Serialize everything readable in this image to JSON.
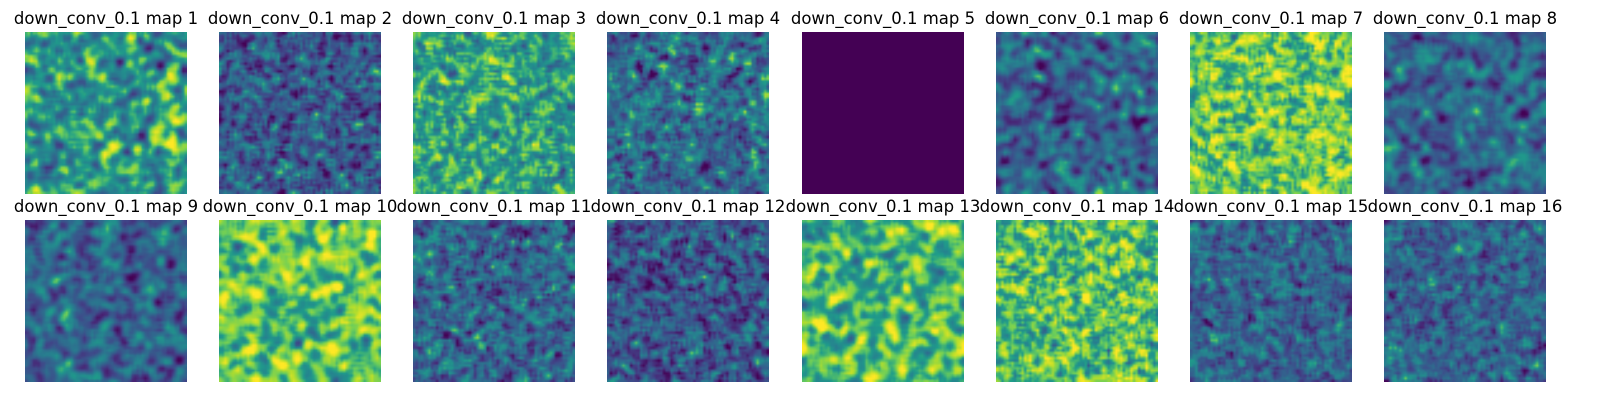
{
  "chart_data": {
    "type": "heatmap",
    "colormap": "viridis",
    "colormap_stops": [
      "#440154",
      "#482777",
      "#3f4a8a",
      "#31678e",
      "#26838f",
      "#1f9d8a",
      "#6cce5a",
      "#b6de2b",
      "#fee825"
    ],
    "grid": false,
    "axes_visible": false,
    "layout": {
      "rows": 2,
      "cols": 8
    },
    "panels": [
      {
        "title": "down_conv_0.1 map 1",
        "mean_level": 0.58,
        "spread": 0.15,
        "texture": "smooth"
      },
      {
        "title": "down_conv_0.1 map 2",
        "mean_level": 0.32,
        "spread": 0.13,
        "texture": "fine"
      },
      {
        "title": "down_conv_0.1 map 3",
        "mean_level": 0.62,
        "spread": 0.12,
        "texture": "fine"
      },
      {
        "title": "down_conv_0.1 map 4",
        "mean_level": 0.4,
        "spread": 0.14,
        "texture": "fine"
      },
      {
        "title": "down_conv_0.1 map 5",
        "mean_level": 0.0,
        "spread": 0.0,
        "texture": "uniform"
      },
      {
        "title": "down_conv_0.1 map 6",
        "mean_level": 0.36,
        "spread": 0.13,
        "texture": "smooth"
      },
      {
        "title": "down_conv_0.1 map 7",
        "mean_level": 0.76,
        "spread": 0.13,
        "texture": "fine"
      },
      {
        "title": "down_conv_0.1 map 8",
        "mean_level": 0.37,
        "spread": 0.12,
        "texture": "smooth"
      },
      {
        "title": "down_conv_0.1 map 9",
        "mean_level": 0.36,
        "spread": 0.12,
        "texture": "smooth"
      },
      {
        "title": "down_conv_0.1 map 10",
        "mean_level": 0.74,
        "spread": 0.13,
        "texture": "smooth"
      },
      {
        "title": "down_conv_0.1 map 11",
        "mean_level": 0.37,
        "spread": 0.13,
        "texture": "fine"
      },
      {
        "title": "down_conv_0.1 map 12",
        "mean_level": 0.3,
        "spread": 0.13,
        "texture": "fine"
      },
      {
        "title": "down_conv_0.1 map 13",
        "mean_level": 0.7,
        "spread": 0.13,
        "texture": "smooth"
      },
      {
        "title": "down_conv_0.1 map 14",
        "mean_level": 0.72,
        "spread": 0.13,
        "texture": "fine"
      },
      {
        "title": "down_conv_0.1 map 15",
        "mean_level": 0.36,
        "spread": 0.11,
        "texture": "fine"
      },
      {
        "title": "down_conv_0.1 map 16",
        "mean_level": 0.36,
        "spread": 0.11,
        "texture": "fine"
      }
    ]
  }
}
